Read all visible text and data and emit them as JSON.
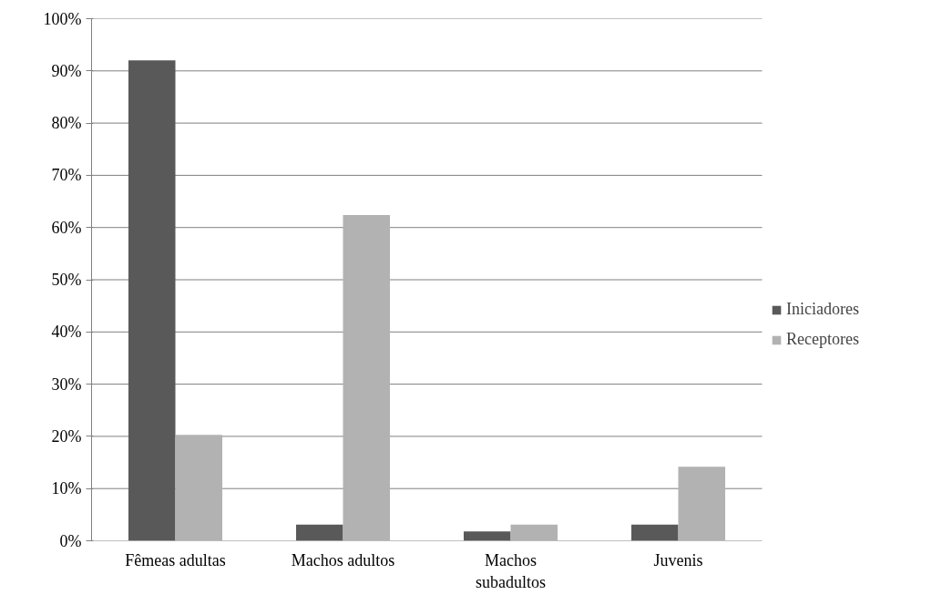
{
  "chart_data": {
    "type": "bar",
    "categories": [
      "Fêmeas adultas",
      "Machos adultos",
      "Machos subadultos",
      "Juvenis"
    ],
    "series": [
      {
        "name": "Iniciadores",
        "color": "#595959",
        "values": [
          92.0,
          3.1,
          1.8,
          3.1
        ]
      },
      {
        "name": "Receptores",
        "color": "#b2b2b2",
        "values": [
          20.3,
          62.4,
          3.1,
          14.2
        ]
      }
    ],
    "ylim": [
      0,
      100
    ],
    "yticks": [
      {
        "value": 0,
        "label": "0%"
      },
      {
        "value": 10,
        "label": "10%"
      },
      {
        "value": 20,
        "label": "20%"
      },
      {
        "value": 30,
        "label": "30%"
      },
      {
        "value": 40,
        "label": "40%"
      },
      {
        "value": 50,
        "label": "50%"
      },
      {
        "value": 60,
        "label": "60%"
      },
      {
        "value": 70,
        "label": "70%"
      },
      {
        "value": 80,
        "label": "80%"
      },
      {
        "value": 90,
        "label": "90%"
      },
      {
        "value": 100,
        "label": "100%"
      }
    ],
    "grid": "y",
    "legend": "right"
  }
}
